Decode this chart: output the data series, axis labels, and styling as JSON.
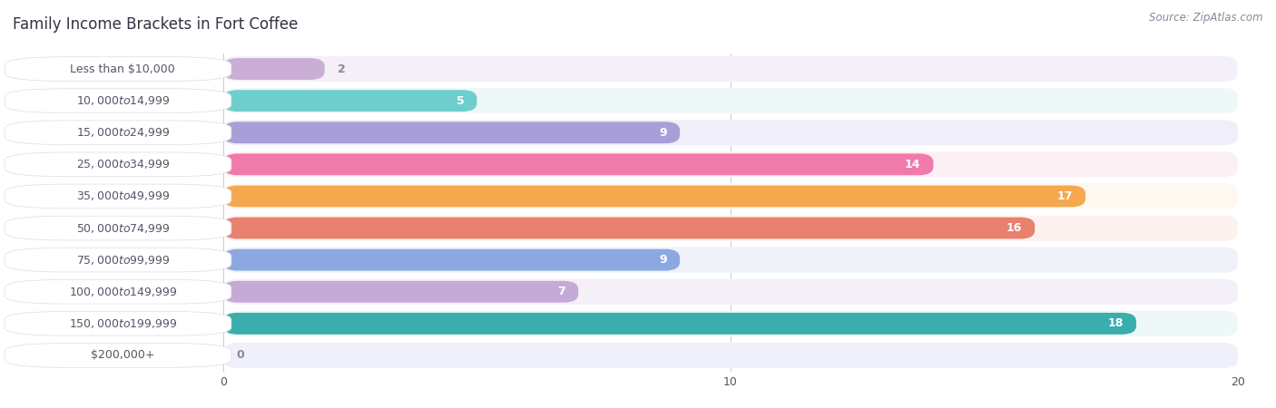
{
  "title": "Family Income Brackets in Fort Coffee",
  "source": "Source: ZipAtlas.com",
  "categories": [
    "Less than $10,000",
    "$10,000 to $14,999",
    "$15,000 to $24,999",
    "$25,000 to $34,999",
    "$35,000 to $49,999",
    "$50,000 to $74,999",
    "$75,000 to $99,999",
    "$100,000 to $149,999",
    "$150,000 to $199,999",
    "$200,000+"
  ],
  "values": [
    2,
    5,
    9,
    14,
    17,
    16,
    9,
    7,
    18,
    0
  ],
  "bar_colors": [
    "#caaed6",
    "#6ecece",
    "#a89fd8",
    "#f07aaa",
    "#f5a84e",
    "#e8816e",
    "#8ca8e0",
    "#c5aad8",
    "#3aadad",
    "#b8b8e8"
  ],
  "bg_colors": [
    "#f5f0f8",
    "#eef8f8",
    "#f0eef8",
    "#fdf0f5",
    "#fef8f0",
    "#fdf2f0",
    "#f0f2fa",
    "#f5f0f8",
    "#eef8f8",
    "#f0f0fa"
  ],
  "xlim": [
    0,
    20
  ],
  "xticks": [
    0,
    10,
    20
  ],
  "label_color": "#555566",
  "value_color_inside": "#ffffff",
  "value_color_outside": "#888898",
  "background_color": "#ffffff",
  "title_color": "#333344",
  "title_fontsize": 12,
  "label_fontsize": 9,
  "value_fontsize": 9
}
